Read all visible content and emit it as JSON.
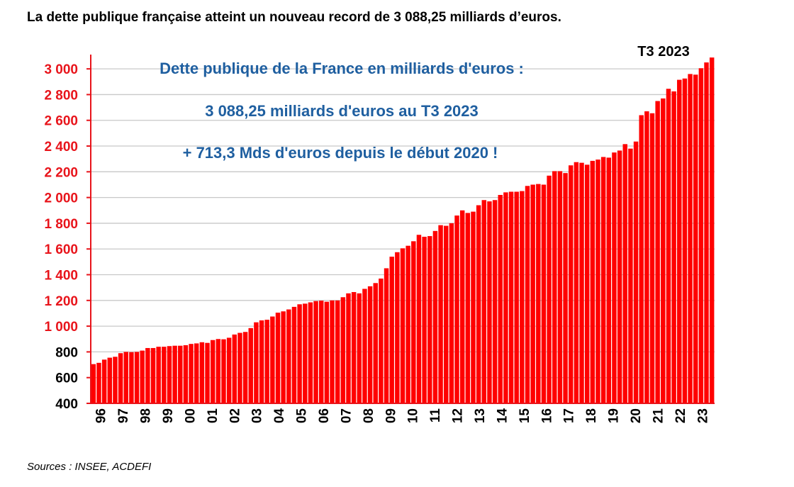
{
  "headline": "La dette publique française atteint un nouveau record de 3 088,25 milliards d’euros.",
  "source": "Sources : INSEE, ACDEFI",
  "colors": {
    "bar": "#ff0000",
    "annotation": "#1f5fa0",
    "ytick_red": "#e8141b",
    "ytick_black": "#000000",
    "grid": "#c8c8c8"
  },
  "chart_data": {
    "type": "bar",
    "title": "Dette publique de la France en milliards d'euros :",
    "annotations": [
      "3 088,25 milliards d'euros au T3 2023",
      "+ 713,3 Mds d'euros depuis le début 2020 !"
    ],
    "callout": "T3 2023",
    "ylim": [
      400,
      3100
    ],
    "yticks": [
      "400",
      "600",
      "800",
      "1 000",
      "1 200",
      "1 400",
      "1 600",
      "1 800",
      "2 000",
      "2 200",
      "2 400",
      "2 600",
      "2 800",
      "3 000"
    ],
    "ytick_values": [
      400,
      600,
      800,
      1000,
      1200,
      1400,
      1600,
      1800,
      2000,
      2200,
      2400,
      2600,
      2800,
      3000
    ],
    "xticks": [
      "96",
      "97",
      "98",
      "99",
      "00",
      "01",
      "02",
      "03",
      "04",
      "05",
      "06",
      "07",
      "08",
      "09",
      "10",
      "11",
      "12",
      "13",
      "14",
      "15",
      "16",
      "17",
      "18",
      "19",
      "20",
      "21",
      "22",
      "23"
    ],
    "values": [
      705,
      715,
      740,
      755,
      762,
      790,
      800,
      798,
      800,
      810,
      830,
      830,
      840,
      840,
      845,
      848,
      848,
      852,
      862,
      866,
      875,
      870,
      892,
      900,
      898,
      910,
      935,
      948,
      955,
      985,
      1030,
      1045,
      1050,
      1075,
      1105,
      1115,
      1130,
      1150,
      1170,
      1175,
      1185,
      1195,
      1198,
      1190,
      1200,
      1200,
      1225,
      1255,
      1265,
      1255,
      1290,
      1310,
      1335,
      1370,
      1450,
      1540,
      1575,
      1605,
      1625,
      1660,
      1710,
      1695,
      1700,
      1740,
      1785,
      1780,
      1800,
      1860,
      1900,
      1880,
      1890,
      1940,
      1980,
      1970,
      1980,
      2020,
      2040,
      2045,
      2045,
      2050,
      2090,
      2100,
      2105,
      2100,
      2170,
      2205,
      2205,
      2190,
      2250,
      2275,
      2270,
      2255,
      2285,
      2295,
      2315,
      2310,
      2350,
      2365,
      2415,
      2380,
      2435,
      2640,
      2670,
      2655,
      2750,
      2770,
      2845,
      2825,
      2915,
      2925,
      2960,
      2955,
      3005,
      3050,
      3088.25
    ]
  }
}
